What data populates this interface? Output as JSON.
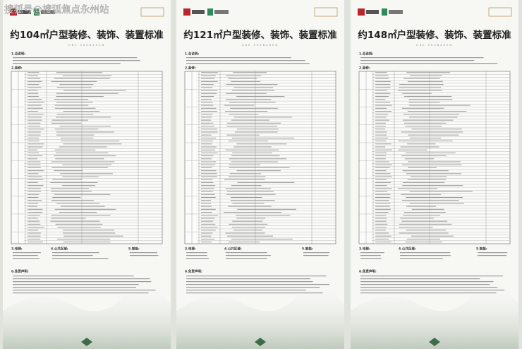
{
  "watermark": "搜狐号@搜狐焦点永州站",
  "panels": [
    {
      "title": "约104㎡户型装修、装饰、装置标准",
      "subtitle": "ONE SHENZHEN",
      "sections": {
        "general": "1.总说明:",
        "decoration": "2.装修:",
        "elevator": "3.电梯:",
        "public": "4.公共区域:",
        "smart": "5.智能:",
        "disclaimer": "6.免责声明:"
      }
    },
    {
      "title": "约121㎡户型装修、装饰、装置标准",
      "subtitle": "ONE SHENZHEN",
      "sections": {
        "general": "1.总说明:",
        "decoration": "2.装修:",
        "elevator": "3.电梯:",
        "public": "4.公共区域:",
        "smart": "5.智能:",
        "disclaimer": "6.免责声明:"
      }
    },
    {
      "title": "约148㎡户型装修、装饰、装置标准",
      "subtitle": "ONE SHENZHEN",
      "sections": {
        "general": "1.总说明:",
        "decoration": "2.装修:",
        "elevator": "3.电梯:",
        "public": "4.公共区域:",
        "smart": "5.智能:",
        "disclaimer": "6.免责声明:"
      }
    }
  ]
}
